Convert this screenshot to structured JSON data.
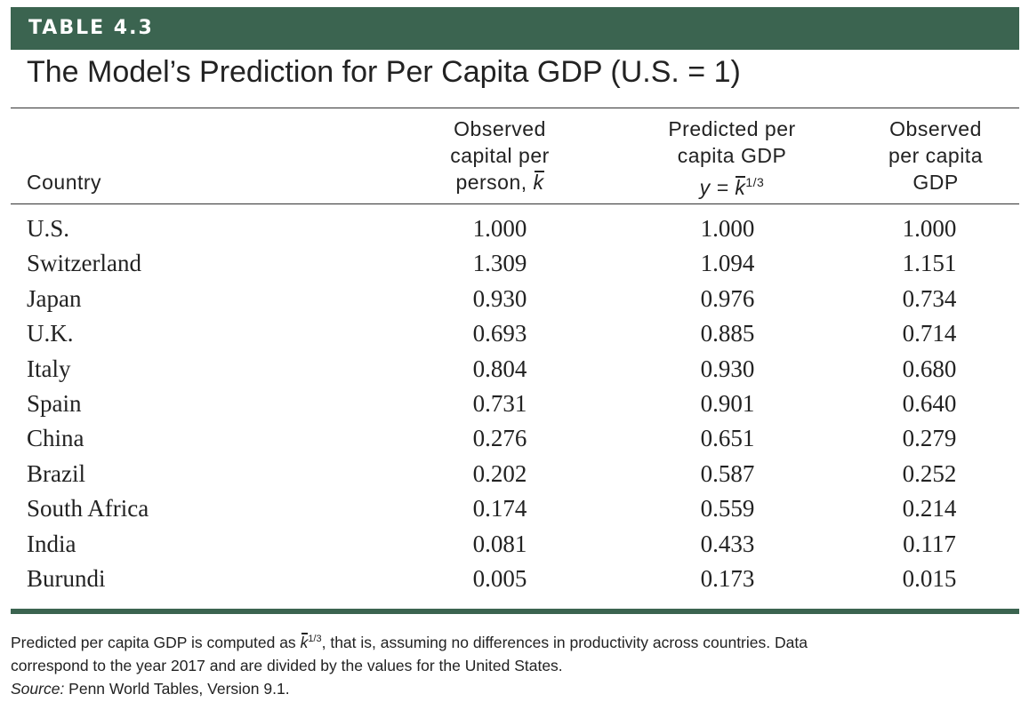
{
  "table_label": "TABLE 4.3",
  "title": "The Model’s Prediction for Per Capita GDP (U.S. = 1)",
  "headers": {
    "country": "Country",
    "observed_capital": {
      "line1": "Observed",
      "line2": "capital per",
      "line3": "person,",
      "symbol": "k"
    },
    "predicted": {
      "line1": "Predicted per",
      "line2": "capita GDP",
      "line3_prefix": "y =",
      "symbol": "k",
      "exponent": "1/3"
    },
    "observed_gdp": {
      "line1": "Observed",
      "line2": "per capita",
      "line3": "GDP"
    }
  },
  "rows": [
    {
      "country": "U.S.",
      "capital": "1.000",
      "predicted": "1.000",
      "observed": "1.000"
    },
    {
      "country": "Switzerland",
      "capital": "1.309",
      "predicted": "1.094",
      "observed": "1.151"
    },
    {
      "country": "Japan",
      "capital": "0.930",
      "predicted": "0.976",
      "observed": "0.734"
    },
    {
      "country": "U.K.",
      "capital": "0.693",
      "predicted": "0.885",
      "observed": "0.714"
    },
    {
      "country": "Italy",
      "capital": "0.804",
      "predicted": "0.930",
      "observed": "0.680"
    },
    {
      "country": "Spain",
      "capital": "0.731",
      "predicted": "0.901",
      "observed": "0.640"
    },
    {
      "country": "China",
      "capital": "0.276",
      "predicted": "0.651",
      "observed": "0.279"
    },
    {
      "country": "Brazil",
      "capital": "0.202",
      "predicted": "0.587",
      "observed": "0.252"
    },
    {
      "country": "South Africa",
      "capital": "0.174",
      "predicted": "0.559",
      "observed": "0.214"
    },
    {
      "country": "India",
      "capital": "0.081",
      "predicted": "0.433",
      "observed": "0.117"
    },
    {
      "country": "Burundi",
      "capital": "0.005",
      "predicted": "0.173",
      "observed": "0.015"
    }
  ],
  "note": {
    "line1_prefix": "Predicted per capita GDP is computed as",
    "symbol": "k",
    "exponent": "1/3",
    "line1_suffix": ", that is, assuming no differences in productivity across countries. Data",
    "line2": "correspond to the year 2017 and are divided by the values for the United States.",
    "source_label": "Source:",
    "source_text": " Penn World Tables, Version 9.1."
  },
  "colors": {
    "banner": "#3b6450",
    "text": "#222222"
  }
}
